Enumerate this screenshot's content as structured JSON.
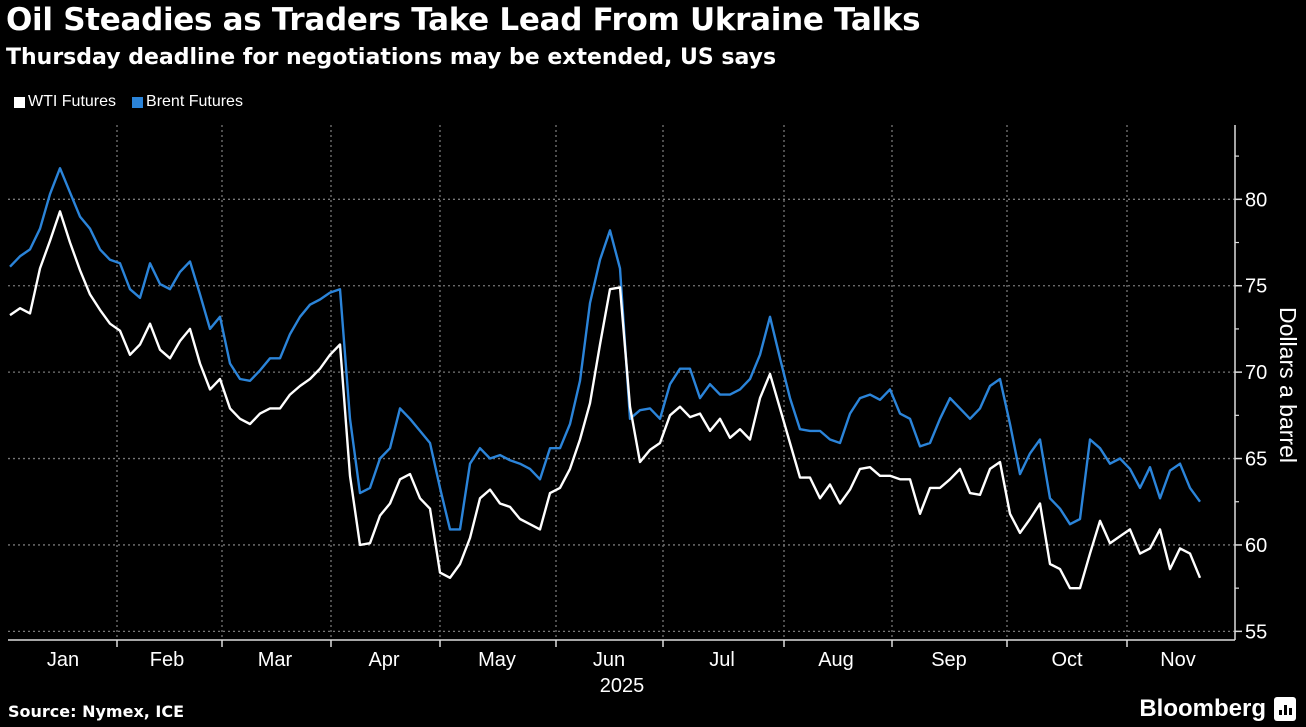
{
  "header": {
    "title": "Oil Steadies as Traders Take Lead From Ukraine Talks",
    "subtitle": "Thursday deadline for negotiations may be extended, US says"
  },
  "footer": {
    "source": "Source: Nymex, ICE",
    "brand": "Bloomberg"
  },
  "chart_data": {
    "type": "line",
    "title": "Oil Steadies as Traders Take Lead From Ukraine Talks",
    "subtitle": "Thursday deadline for negotiations may be extended, US says",
    "xlabel": "2025",
    "ylabel": "Dollars a barrel",
    "x_unit": "sample index (approx. every 2 trading days, Jan-Nov 2025)",
    "x_start": 0,
    "x_step": 1,
    "xlim": [
      -0.2,
      122.5
    ],
    "ylim": [
      54.5,
      84.3
    ],
    "yticks": [
      55,
      60,
      65,
      70,
      75,
      80
    ],
    "grid": true,
    "legend": "top-left",
    "month_boundaries": [
      10.7,
      21.2,
      32.1,
      43.0,
      54.6,
      65.3,
      77.4,
      88.2,
      99.7,
      111.7
    ],
    "month_ticks": [
      {
        "label": "Jan",
        "pos": 5.3
      },
      {
        "label": "Feb",
        "pos": 15.7
      },
      {
        "label": "Mar",
        "pos": 26.5
      },
      {
        "label": "Apr",
        "pos": 37.4
      },
      {
        "label": "May",
        "pos": 48.7
      },
      {
        "label": "Jun",
        "pos": 59.9
      },
      {
        "label": "Jul",
        "pos": 71.2
      },
      {
        "label": "Aug",
        "pos": 82.6
      },
      {
        "label": "Sep",
        "pos": 93.9
      },
      {
        "label": "Oct",
        "pos": 105.7
      },
      {
        "label": "Nov",
        "pos": 116.8
      }
    ],
    "series": [
      {
        "name": "WTI Futures",
        "color": "#ffffff",
        "values": [
          73.3,
          73.7,
          73.4,
          76.0,
          77.6,
          79.3,
          77.5,
          75.9,
          74.5,
          73.6,
          72.8,
          72.4,
          71.0,
          71.6,
          72.8,
          71.3,
          70.8,
          71.8,
          72.5,
          70.5,
          69.0,
          69.6,
          67.9,
          67.3,
          67.0,
          67.6,
          67.9,
          67.9,
          68.7,
          69.2,
          69.6,
          70.2,
          71.0,
          71.6,
          64.0,
          60.0,
          60.1,
          61.7,
          62.4,
          63.8,
          64.1,
          62.7,
          62.1,
          58.4,
          58.1,
          58.9,
          60.4,
          62.7,
          63.2,
          62.4,
          62.2,
          61.5,
          61.2,
          60.9,
          63.0,
          63.3,
          64.4,
          66.1,
          68.2,
          71.6,
          74.8,
          74.9,
          68.0,
          64.8,
          65.5,
          65.9,
          67.5,
          68.0,
          67.4,
          67.6,
          66.6,
          67.3,
          66.2,
          66.7,
          66.1,
          68.5,
          69.9,
          67.9,
          65.9,
          63.9,
          63.9,
          62.7,
          63.5,
          62.4,
          63.2,
          64.4,
          64.5,
          64.0,
          64.0,
          63.8,
          63.8,
          61.8,
          63.3,
          63.3,
          63.8,
          64.4,
          63.0,
          62.9,
          64.4,
          64.8,
          61.8,
          60.7,
          61.5,
          62.4,
          58.9,
          58.6,
          57.5,
          57.5,
          59.5,
          61.4,
          60.1,
          60.5,
          60.9,
          59.5,
          59.8,
          60.9,
          58.6,
          59.8,
          59.5,
          58.1
        ]
      },
      {
        "name": "Brent Futures",
        "color": "#2b84d9",
        "values": [
          76.1,
          76.7,
          77.1,
          78.3,
          80.3,
          81.8,
          80.4,
          79.0,
          78.3,
          77.1,
          76.5,
          76.3,
          74.8,
          74.3,
          76.3,
          75.1,
          74.8,
          75.8,
          76.4,
          74.5,
          72.5,
          73.2,
          70.5,
          69.6,
          69.5,
          70.1,
          70.8,
          70.8,
          72.2,
          73.2,
          73.9,
          74.2,
          74.6,
          74.8,
          67.3,
          63.0,
          63.3,
          65.0,
          65.6,
          67.9,
          67.3,
          66.6,
          65.9,
          63.3,
          60.9,
          60.9,
          64.7,
          65.6,
          65.0,
          65.2,
          64.9,
          64.7,
          64.4,
          63.8,
          65.6,
          65.6,
          67.0,
          69.5,
          74.0,
          76.5,
          78.2,
          76.0,
          67.3,
          67.8,
          67.9,
          67.3,
          69.3,
          70.2,
          70.2,
          68.5,
          69.3,
          68.7,
          68.7,
          69.0,
          69.6,
          71.0,
          73.2,
          70.8,
          68.5,
          66.7,
          66.6,
          66.6,
          66.1,
          65.9,
          67.6,
          68.5,
          68.7,
          68.4,
          69.0,
          67.6,
          67.3,
          65.7,
          65.9,
          67.3,
          68.5,
          67.9,
          67.3,
          67.9,
          69.2,
          69.6,
          67.0,
          64.1,
          65.3,
          66.1,
          62.7,
          62.1,
          61.2,
          61.5,
          66.1,
          65.6,
          64.7,
          65.0,
          64.4,
          63.3,
          64.5,
          62.7,
          64.3,
          64.7,
          63.3,
          62.5
        ]
      }
    ]
  }
}
